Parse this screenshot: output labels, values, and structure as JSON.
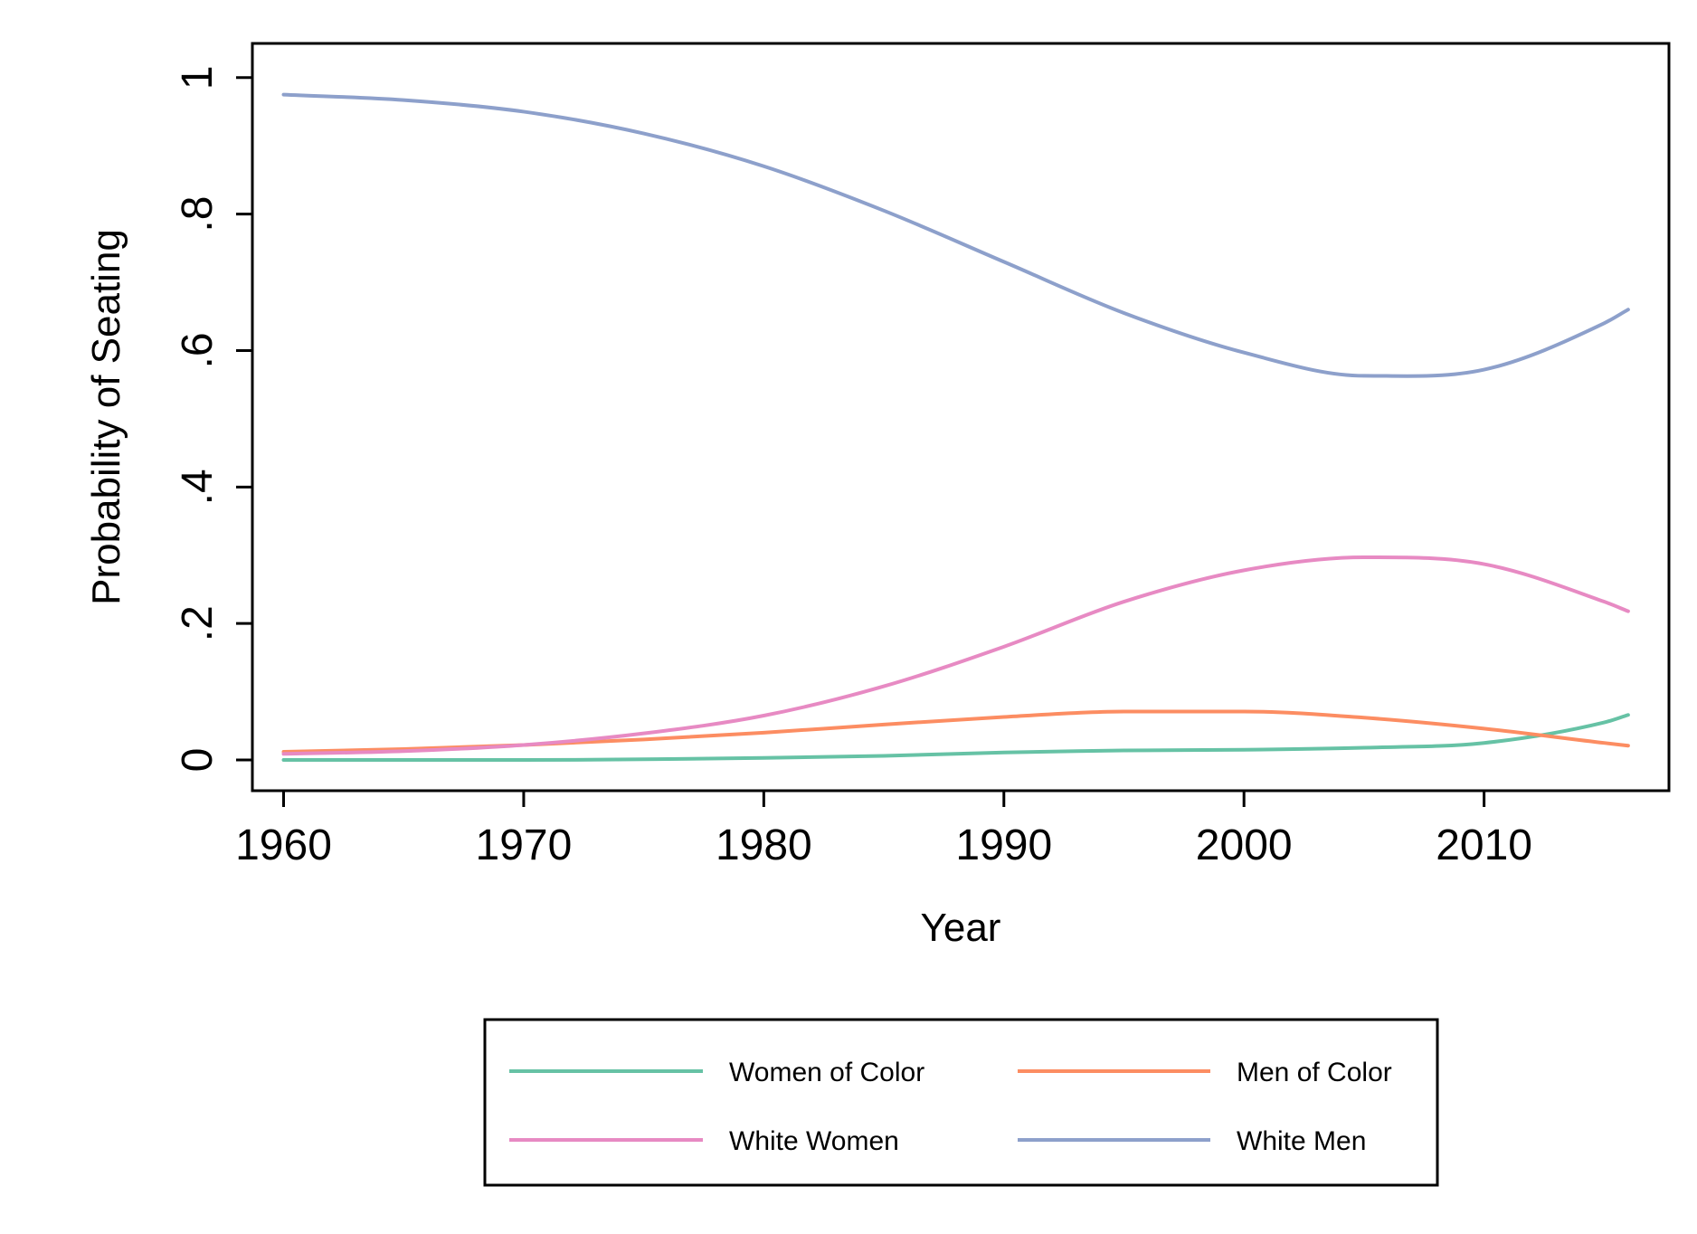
{
  "chart_data": {
    "type": "line",
    "title": "",
    "xlabel": "Year",
    "ylabel": "Probability of Seating",
    "xlim": [
      1958.7,
      2017.7
    ],
    "ylim": [
      -0.045,
      1.05
    ],
    "x_ticks": [
      1960,
      1970,
      1980,
      1990,
      2000,
      2010
    ],
    "x_tick_labels": [
      "1960",
      "1970",
      "1980",
      "1990",
      "2000",
      "2010"
    ],
    "y_ticks": [
      0,
      0.2,
      0.4,
      0.6,
      0.8,
      1
    ],
    "y_tick_labels": [
      "0",
      ".2",
      ".4",
      ".6",
      ".8",
      "1"
    ],
    "grid": false,
    "legend_position": "bottom",
    "x": [
      1960,
      1965,
      1970,
      1975,
      1980,
      1985,
      1990,
      1995,
      2000,
      2005,
      2010,
      2015,
      2016
    ],
    "series": [
      {
        "name": "Women of Color",
        "color": "#66c2a5",
        "values": [
          0.0,
          0.0,
          0.0,
          0.001,
          0.003,
          0.006,
          0.011,
          0.014,
          0.015,
          0.018,
          0.025,
          0.055,
          0.066
        ]
      },
      {
        "name": "Men of Color",
        "color": "#fc8d62",
        "values": [
          0.012,
          0.016,
          0.022,
          0.03,
          0.04,
          0.052,
          0.063,
          0.071,
          0.071,
          0.062,
          0.046,
          0.025,
          0.021
        ]
      },
      {
        "name": "White Women",
        "color": "#e78ac3",
        "values": [
          0.009,
          0.013,
          0.022,
          0.039,
          0.065,
          0.108,
          0.166,
          0.232,
          0.278,
          0.297,
          0.287,
          0.232,
          0.218
        ]
      },
      {
        "name": "White Men",
        "color": "#8da0cb",
        "values": [
          0.975,
          0.967,
          0.95,
          0.918,
          0.87,
          0.805,
          0.73,
          0.655,
          0.597,
          0.563,
          0.572,
          0.64,
          0.66
        ]
      }
    ]
  }
}
